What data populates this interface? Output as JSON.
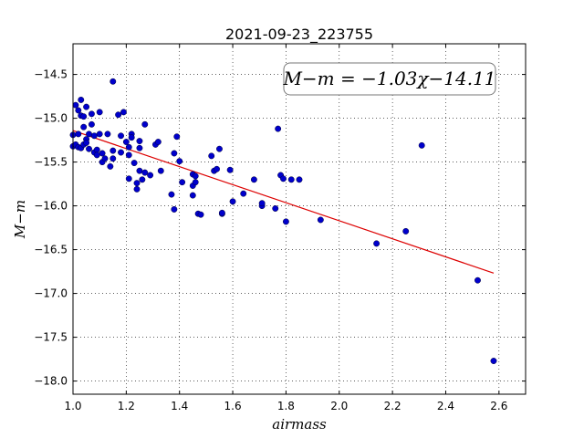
{
  "chart_data": {
    "type": "scatter",
    "title": "2021-09-23_223755",
    "xlabel": "airmass",
    "ylabel": "M−m",
    "xlim": [
      1.0,
      2.7
    ],
    "ylim": [
      -18.15,
      -14.15
    ],
    "grid": true,
    "x_ticks": [
      "1.0",
      "1.2",
      "1.4",
      "1.6",
      "1.8",
      "2.0",
      "2.2",
      "2.4",
      "2.6"
    ],
    "y_ticks": [
      "-14.5",
      "-15.0",
      "-15.5",
      "-16.0",
      "-16.5",
      "-17.0",
      "-17.5",
      "-18.0"
    ],
    "annotation": "M−m = −1.03χ−14.11",
    "annotation_position": "top-right",
    "fit_line": {
      "slope": -1.03,
      "intercept": -14.11,
      "x_range": [
        1.0,
        2.58
      ],
      "color": "#dd0000"
    },
    "point_color": "#0000cc",
    "points": [
      [
        1.0,
        -15.19
      ],
      [
        1.0,
        -15.32
      ],
      [
        1.01,
        -15.3
      ],
      [
        1.01,
        -14.85
      ],
      [
        1.02,
        -14.91
      ],
      [
        1.02,
        -15.33
      ],
      [
        1.02,
        -15.18
      ],
      [
        1.03,
        -14.79
      ],
      [
        1.03,
        -14.97
      ],
      [
        1.03,
        -15.34
      ],
      [
        1.04,
        -14.98
      ],
      [
        1.04,
        -15.1
      ],
      [
        1.04,
        -15.3
      ],
      [
        1.05,
        -14.87
      ],
      [
        1.05,
        -15.24
      ],
      [
        1.05,
        -15.28
      ],
      [
        1.06,
        -15.18
      ],
      [
        1.06,
        -15.35
      ],
      [
        1.07,
        -14.95
      ],
      [
        1.07,
        -15.07
      ],
      [
        1.08,
        -15.2
      ],
      [
        1.08,
        -15.39
      ],
      [
        1.09,
        -15.36
      ],
      [
        1.09,
        -15.42
      ],
      [
        1.1,
        -14.93
      ],
      [
        1.1,
        -15.18
      ],
      [
        1.11,
        -15.4
      ],
      [
        1.11,
        -15.5
      ],
      [
        1.12,
        -15.46
      ],
      [
        1.13,
        -15.18
      ],
      [
        1.14,
        -15.55
      ],
      [
        1.15,
        -15.37
      ],
      [
        1.15,
        -15.46
      ],
      [
        1.15,
        -14.58
      ],
      [
        1.17,
        -14.96
      ],
      [
        1.18,
        -15.39
      ],
      [
        1.18,
        -15.2
      ],
      [
        1.19,
        -14.93
      ],
      [
        1.2,
        -15.27
      ],
      [
        1.21,
        -15.33
      ],
      [
        1.21,
        -15.42
      ],
      [
        1.21,
        -15.69
      ],
      [
        1.22,
        -15.18
      ],
      [
        1.22,
        -15.22
      ],
      [
        1.23,
        -15.51
      ],
      [
        1.24,
        -15.81
      ],
      [
        1.24,
        -15.74
      ],
      [
        1.25,
        -15.6
      ],
      [
        1.25,
        -15.34
      ],
      [
        1.25,
        -15.26
      ],
      [
        1.26,
        -15.7
      ],
      [
        1.27,
        -15.07
      ],
      [
        1.27,
        -15.62
      ],
      [
        1.29,
        -15.65
      ],
      [
        1.31,
        -15.3
      ],
      [
        1.32,
        -15.27
      ],
      [
        1.33,
        -15.6
      ],
      [
        1.37,
        -15.87
      ],
      [
        1.38,
        -15.4
      ],
      [
        1.38,
        -16.04
      ],
      [
        1.39,
        -15.21
      ],
      [
        1.4,
        -15.49
      ],
      [
        1.41,
        -15.73
      ],
      [
        1.45,
        -15.64
      ],
      [
        1.45,
        -15.77
      ],
      [
        1.45,
        -15.88
      ],
      [
        1.46,
        -15.66
      ],
      [
        1.46,
        -15.73
      ],
      [
        1.47,
        -16.09
      ],
      [
        1.48,
        -16.1
      ],
      [
        1.52,
        -15.43
      ],
      [
        1.53,
        -15.6
      ],
      [
        1.54,
        -15.58
      ],
      [
        1.55,
        -15.35
      ],
      [
        1.56,
        -16.09
      ],
      [
        1.56,
        -16.08
      ],
      [
        1.59,
        -15.59
      ],
      [
        1.6,
        -15.95
      ],
      [
        1.64,
        -15.86
      ],
      [
        1.68,
        -15.7
      ],
      [
        1.71,
        -16.0
      ],
      [
        1.71,
        -15.97
      ],
      [
        1.76,
        -16.03
      ],
      [
        1.77,
        -15.12
      ],
      [
        1.78,
        -15.65
      ],
      [
        1.79,
        -15.69
      ],
      [
        1.8,
        -16.18
      ],
      [
        1.82,
        -15.7
      ],
      [
        1.85,
        -15.7
      ],
      [
        1.93,
        -16.16
      ],
      [
        2.14,
        -16.43
      ],
      [
        2.25,
        -16.29
      ],
      [
        2.31,
        -15.31
      ],
      [
        2.52,
        -16.85
      ],
      [
        2.58,
        -17.77
      ]
    ]
  }
}
